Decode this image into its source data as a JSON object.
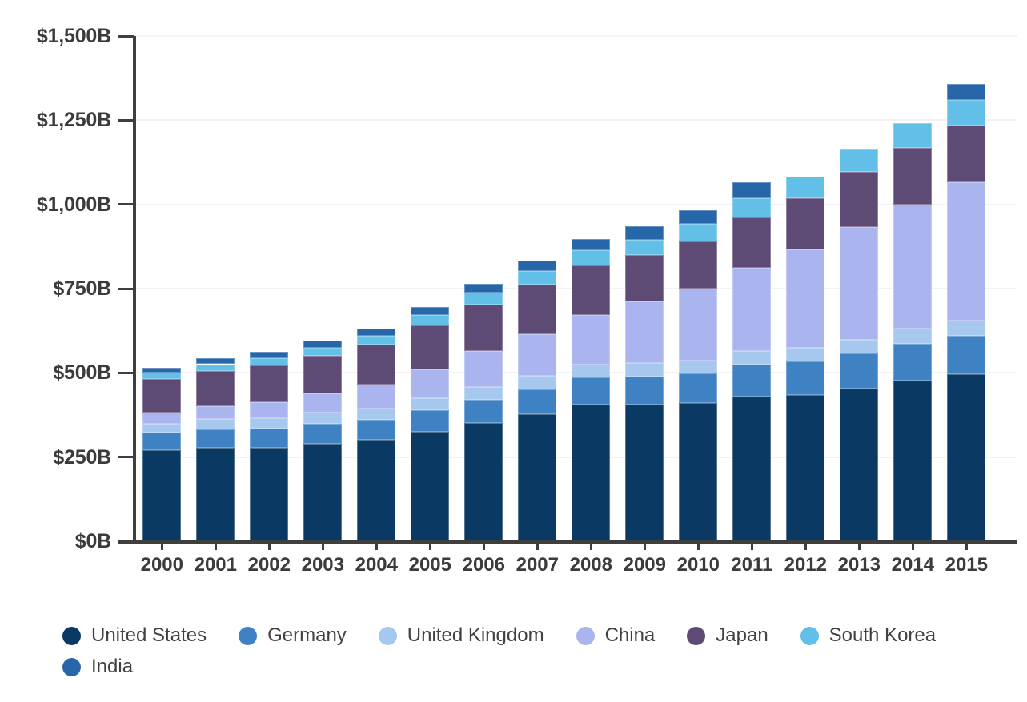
{
  "chart_data": {
    "type": "bar",
    "variant": "stacked-column",
    "title": "",
    "x_labels": [
      "2000",
      "2001",
      "2002",
      "2003",
      "2004",
      "2005",
      "2006",
      "2007",
      "2008",
      "2009",
      "2010",
      "2011",
      "2012",
      "2013",
      "2014",
      "2015"
    ],
    "y_axis": {
      "min": 0,
      "max": 1500,
      "tick_step": 250,
      "tick_labels": [
        "$0B",
        "$250B",
        "$500B",
        "$750B",
        "$1,000B",
        "$1,250B",
        "$1,500B"
      ]
    },
    "grid": "horizontal",
    "legend_position": "bottom",
    "series": [
      {
        "name": "United States",
        "color": "#0a3a64",
        "values": [
          269.5,
          278.2,
          277.1,
          289.7,
          300.3,
          325.3,
          350.9,
          377.6,
          404.8,
          406.4,
          410.1,
          429.1,
          434.3,
          454.0,
          476.5,
          495.1
        ]
      },
      {
        "name": "Germany",
        "color": "#3e82c3",
        "values": [
          52.3,
          54.5,
          56.7,
          59.2,
          61.4,
          64.3,
          70.2,
          74.1,
          81.4,
          82.8,
          87.8,
          96.3,
          100.8,
          103.4,
          109.7,
          114.8
        ]
      },
      {
        "name": "United Kingdom",
        "color": "#a6c8ef",
        "values": [
          27.9,
          29.4,
          31.1,
          32.1,
          33.2,
          34.8,
          37.3,
          38.7,
          39.4,
          39.2,
          38.1,
          39.2,
          38.8,
          41.2,
          44.2,
          46.3
        ]
      },
      {
        "name": "China",
        "color": "#aab4ee",
        "values": [
          33.0,
          38.6,
          48.0,
          57.5,
          70.5,
          86.8,
          105.5,
          123.9,
          145.4,
          184.4,
          213.0,
          247.8,
          292.1,
          333.5,
          368.7,
          408.8
        ]
      },
      {
        "name": "Japan",
        "color": "#5d4a75",
        "values": [
          98.8,
          103.8,
          108.2,
          112.3,
          117.5,
          128.7,
          138.6,
          147.6,
          148.7,
          137.0,
          140.6,
          148.4,
          152.3,
          164.3,
          169.6,
          170.0
        ]
      },
      {
        "name": "South Korea",
        "color": "#61bfe8",
        "values": [
          18.5,
          21.2,
          22.9,
          24.3,
          27.9,
          30.6,
          35.2,
          40.7,
          43.9,
          46.1,
          52.2,
          58.4,
          64.9,
          68.9,
          72.3,
          74.1
        ]
      },
      {
        "name": "India",
        "color": "#2767a9",
        "values": [
          15.9,
          17.3,
          18.7,
          20.2,
          21.6,
          24.6,
          27.2,
          30.2,
          33.9,
          38.1,
          40.1,
          46.0,
          null,
          null,
          null,
          49.0
        ]
      }
    ]
  },
  "style": {
    "axis_color": "#3f3f3f",
    "label_color": "#3b3b3b",
    "gridline_color": "#f3f3f3",
    "legend_text_color": "#414141",
    "background": "#ffffff"
  }
}
